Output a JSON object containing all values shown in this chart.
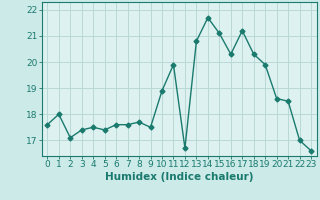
{
  "x": [
    0,
    1,
    2,
    3,
    4,
    5,
    6,
    7,
    8,
    9,
    10,
    11,
    12,
    13,
    14,
    15,
    16,
    17,
    18,
    19,
    20,
    21,
    22,
    23
  ],
  "y": [
    17.6,
    18.0,
    17.1,
    17.4,
    17.5,
    17.4,
    17.6,
    17.6,
    17.7,
    17.5,
    18.9,
    19.9,
    16.7,
    20.8,
    21.7,
    21.1,
    20.3,
    21.2,
    20.3,
    19.9,
    18.6,
    18.5,
    17.0,
    16.6
  ],
  "xlabel": "Humidex (Indice chaleur)",
  "line_color": "#1a7a6e",
  "bg_color": "#cceae8",
  "grid_color": "#b8d8d6",
  "plot_bg": "#ddf2f0",
  "ylim": [
    16.4,
    22.3
  ],
  "yticks": [
    17,
    18,
    19,
    20,
    21,
    22
  ],
  "xticks": [
    0,
    1,
    2,
    3,
    4,
    5,
    6,
    7,
    8,
    9,
    10,
    11,
    12,
    13,
    14,
    15,
    16,
    17,
    18,
    19,
    20,
    21,
    22,
    23
  ],
  "marker": "D",
  "marker_size": 2.5,
  "line_width": 1.0,
  "tick_fontsize": 6.5,
  "xlabel_fontsize": 7.5
}
